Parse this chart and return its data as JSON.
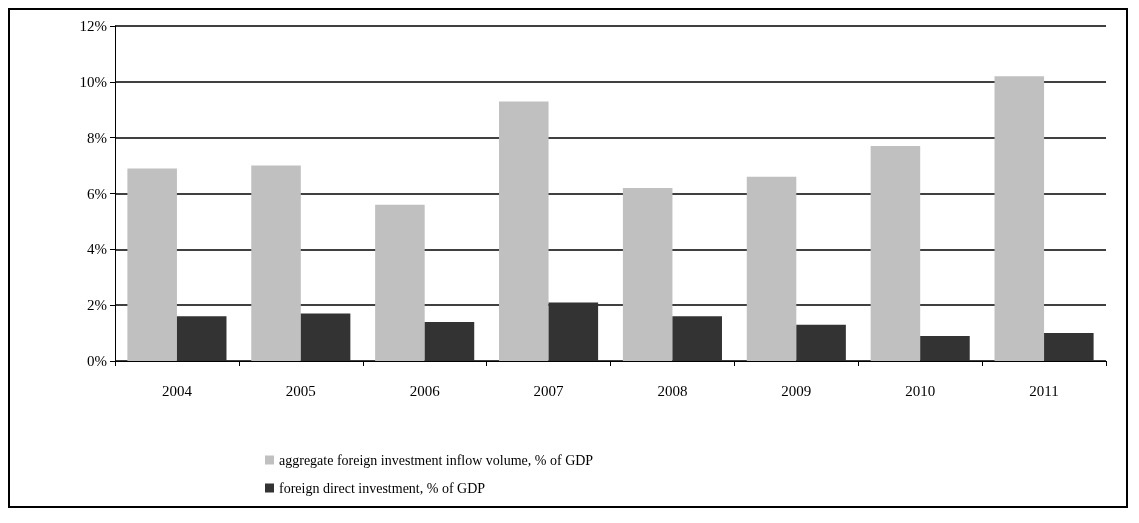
{
  "chart_data": {
    "type": "bar",
    "categories": [
      "2004",
      "2005",
      "2006",
      "2007",
      "2008",
      "2009",
      "2010",
      "2011"
    ],
    "series": [
      {
        "name": "aggregate foreign investment inflow volume, % of GDP",
        "color": "#c0c0c0",
        "values": [
          6.9,
          7.0,
          5.6,
          9.3,
          6.2,
          6.6,
          7.7,
          10.2
        ]
      },
      {
        "name": "foreign direct investment, % of GDP",
        "color": "#333333",
        "values": [
          1.6,
          1.7,
          1.4,
          2.1,
          1.6,
          1.3,
          0.9,
          1.0
        ]
      }
    ],
    "ylim": [
      0,
      12
    ],
    "yticks": [
      {
        "value": 0,
        "label": "0%"
      },
      {
        "value": 2,
        "label": "2%"
      },
      {
        "value": 4,
        "label": "4%"
      },
      {
        "value": 6,
        "label": "6%"
      },
      {
        "value": 8,
        "label": "8%"
      },
      {
        "value": 10,
        "label": "10%"
      },
      {
        "value": 12,
        "label": "12%"
      }
    ],
    "grid": "y",
    "legend": "bottom left"
  }
}
